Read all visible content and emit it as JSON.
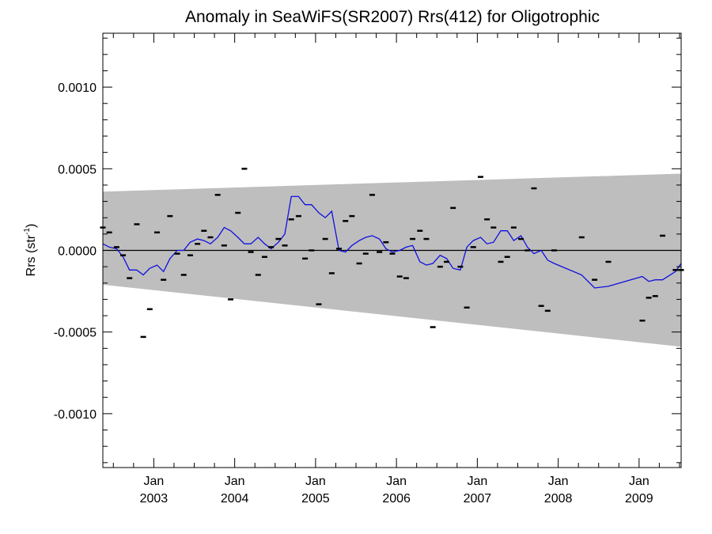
{
  "chart_data": {
    "type": "scatter",
    "title": "Anomaly in SeaWiFS(SR2007) Rrs(412) for Oligotrophic",
    "ylabel": {
      "base": "Rrs (str",
      "sup": "-1",
      "close": ")"
    },
    "xlabel": "",
    "xlim": [
      2002.37,
      2009.52
    ],
    "ylim": [
      -0.00133,
      0.00133
    ],
    "y_ticks": [
      {
        "value": 0.001,
        "label": "0.0010"
      },
      {
        "value": 0.0005,
        "label": "0.0005"
      },
      {
        "value": 0.0,
        "label": "0.0000"
      },
      {
        "value": -0.0005,
        "label": "-0.0005"
      },
      {
        "value": -0.001,
        "label": "-0.0010"
      }
    ],
    "x_ticks": [
      {
        "value": 2003.0,
        "month": "Jan",
        "year": "2003"
      },
      {
        "value": 2004.0,
        "month": "Jan",
        "year": "2004"
      },
      {
        "value": 2005.0,
        "month": "Jan",
        "year": "2005"
      },
      {
        "value": 2006.0,
        "month": "Jan",
        "year": "2006"
      },
      {
        "value": 2007.0,
        "month": "Jan",
        "year": "2007"
      },
      {
        "value": 2008.0,
        "month": "Jan",
        "year": "2008"
      },
      {
        "value": 2009.0,
        "month": "Jan",
        "year": "2009"
      }
    ],
    "confidence_band": {
      "x": [
        2002.37,
        2009.52
      ],
      "upper": [
        0.00036,
        0.00047
      ],
      "lower": [
        -0.00021,
        -0.00059
      ],
      "color": "#bebebe"
    },
    "zero_line": 0.0,
    "series": [
      {
        "type": "scatter",
        "color": "#000000",
        "x": [
          2002.37,
          2002.45,
          2002.54,
          2002.62,
          2002.7,
          2002.79,
          2002.87,
          2002.95,
          2003.04,
          2003.12,
          2003.2,
          2003.29,
          2003.37,
          2003.45,
          2003.54,
          2003.62,
          2003.7,
          2003.79,
          2003.87,
          2003.95,
          2004.04,
          2004.12,
          2004.2,
          2004.29,
          2004.37,
          2004.45,
          2004.54,
          2004.62,
          2004.7,
          2004.79,
          2004.87,
          2004.95,
          2005.04,
          2005.12,
          2005.2,
          2005.29,
          2005.37,
          2005.45,
          2005.54,
          2005.62,
          2005.7,
          2005.79,
          2005.87,
          2005.95,
          2006.04,
          2006.12,
          2006.2,
          2006.29,
          2006.37,
          2006.45,
          2006.54,
          2006.62,
          2006.7,
          2006.79,
          2006.87,
          2006.95,
          2007.04,
          2007.12,
          2007.2,
          2007.29,
          2007.37,
          2007.45,
          2007.54,
          2007.62,
          2007.7,
          2007.79,
          2007.87,
          2007.95,
          2008.29,
          2008.45,
          2008.62,
          2009.04,
          2009.12,
          2009.2,
          2009.29,
          2009.45,
          2009.52
        ],
        "y": [
          0.00014,
          0.00011,
          2e-05,
          -3e-05,
          -0.00017,
          0.00016,
          -0.00053,
          -0.00036,
          0.00011,
          -0.00018,
          0.00021,
          -2e-05,
          -0.00015,
          -3e-05,
          4e-05,
          0.00012,
          8e-05,
          0.00034,
          3e-05,
          -0.0003,
          0.00023,
          0.0005,
          -1e-05,
          -0.00015,
          -4e-05,
          2e-05,
          7e-05,
          3e-05,
          0.00019,
          0.00021,
          -5e-05,
          0.0,
          -0.00033,
          7e-05,
          -0.00014,
          1e-05,
          0.00018,
          0.00021,
          -8e-05,
          -2e-05,
          0.00034,
          -1e-05,
          5e-05,
          -2e-05,
          -0.00016,
          -0.00017,
          7e-05,
          0.00012,
          7e-05,
          -0.00047,
          -0.0001,
          -7e-05,
          0.00026,
          -0.0001,
          -0.00035,
          2e-05,
          0.00045,
          0.00019,
          0.00014,
          -7e-05,
          -4e-05,
          0.00014,
          7e-05,
          0.0,
          0.00038,
          -0.00034,
          -0.00037,
          0.0,
          8e-05,
          -0.00018,
          -7e-05,
          -0.00043,
          -0.00029,
          -0.00028,
          9e-05,
          -0.00012,
          -0.00012
        ]
      },
      {
        "type": "line",
        "color": "#1010e0",
        "x": [
          2002.37,
          2002.45,
          2002.54,
          2002.62,
          2002.7,
          2002.79,
          2002.87,
          2002.95,
          2003.04,
          2003.12,
          2003.2,
          2003.29,
          2003.37,
          2003.45,
          2003.54,
          2003.62,
          2003.7,
          2003.79,
          2003.87,
          2003.95,
          2004.04,
          2004.12,
          2004.2,
          2004.29,
          2004.37,
          2004.45,
          2004.54,
          2004.62,
          2004.7,
          2004.79,
          2004.87,
          2004.95,
          2005.04,
          2005.12,
          2005.2,
          2005.29,
          2005.37,
          2005.45,
          2005.54,
          2005.62,
          2005.7,
          2005.79,
          2005.87,
          2005.95,
          2006.04,
          2006.12,
          2006.2,
          2006.29,
          2006.37,
          2006.45,
          2006.54,
          2006.62,
          2006.7,
          2006.79,
          2006.87,
          2006.95,
          2007.04,
          2007.12,
          2007.2,
          2007.29,
          2007.37,
          2007.45,
          2007.54,
          2007.62,
          2007.7,
          2007.79,
          2007.87,
          2007.95,
          2008.29,
          2008.45,
          2008.62,
          2009.04,
          2009.12,
          2009.2,
          2009.29,
          2009.45,
          2009.52
        ],
        "y": [
          4e-05,
          2e-05,
          1e-05,
          -4e-05,
          -0.00012,
          -0.00012,
          -0.00015,
          -0.00011,
          -9e-05,
          -0.00013,
          -5e-05,
          0.0,
          0.0,
          5e-05,
          7e-05,
          6e-05,
          4e-05,
          8e-05,
          0.00014,
          0.00012,
          8e-05,
          4e-05,
          4e-05,
          8e-05,
          4e-05,
          1e-05,
          5e-05,
          0.0001,
          0.00033,
          0.00033,
          0.00028,
          0.00028,
          0.00023,
          0.0002,
          0.00024,
          0.0,
          -1e-05,
          3e-05,
          6e-05,
          8e-05,
          9e-05,
          7e-05,
          1e-05,
          -1e-05,
          0.0,
          2e-05,
          3e-05,
          -7e-05,
          -9e-05,
          -8e-05,
          -3e-05,
          -5e-05,
          -0.00011,
          -0.00012,
          2e-05,
          6e-05,
          8e-05,
          4e-05,
          5e-05,
          0.00012,
          0.00012,
          6e-05,
          9e-05,
          2e-05,
          -2e-05,
          0.0,
          -6e-05,
          -8e-05,
          -0.00015,
          -0.00023,
          -0.00022,
          -0.00016,
          -0.00019,
          -0.00018,
          -0.00018,
          -0.00013,
          -8e-05
        ]
      }
    ]
  }
}
